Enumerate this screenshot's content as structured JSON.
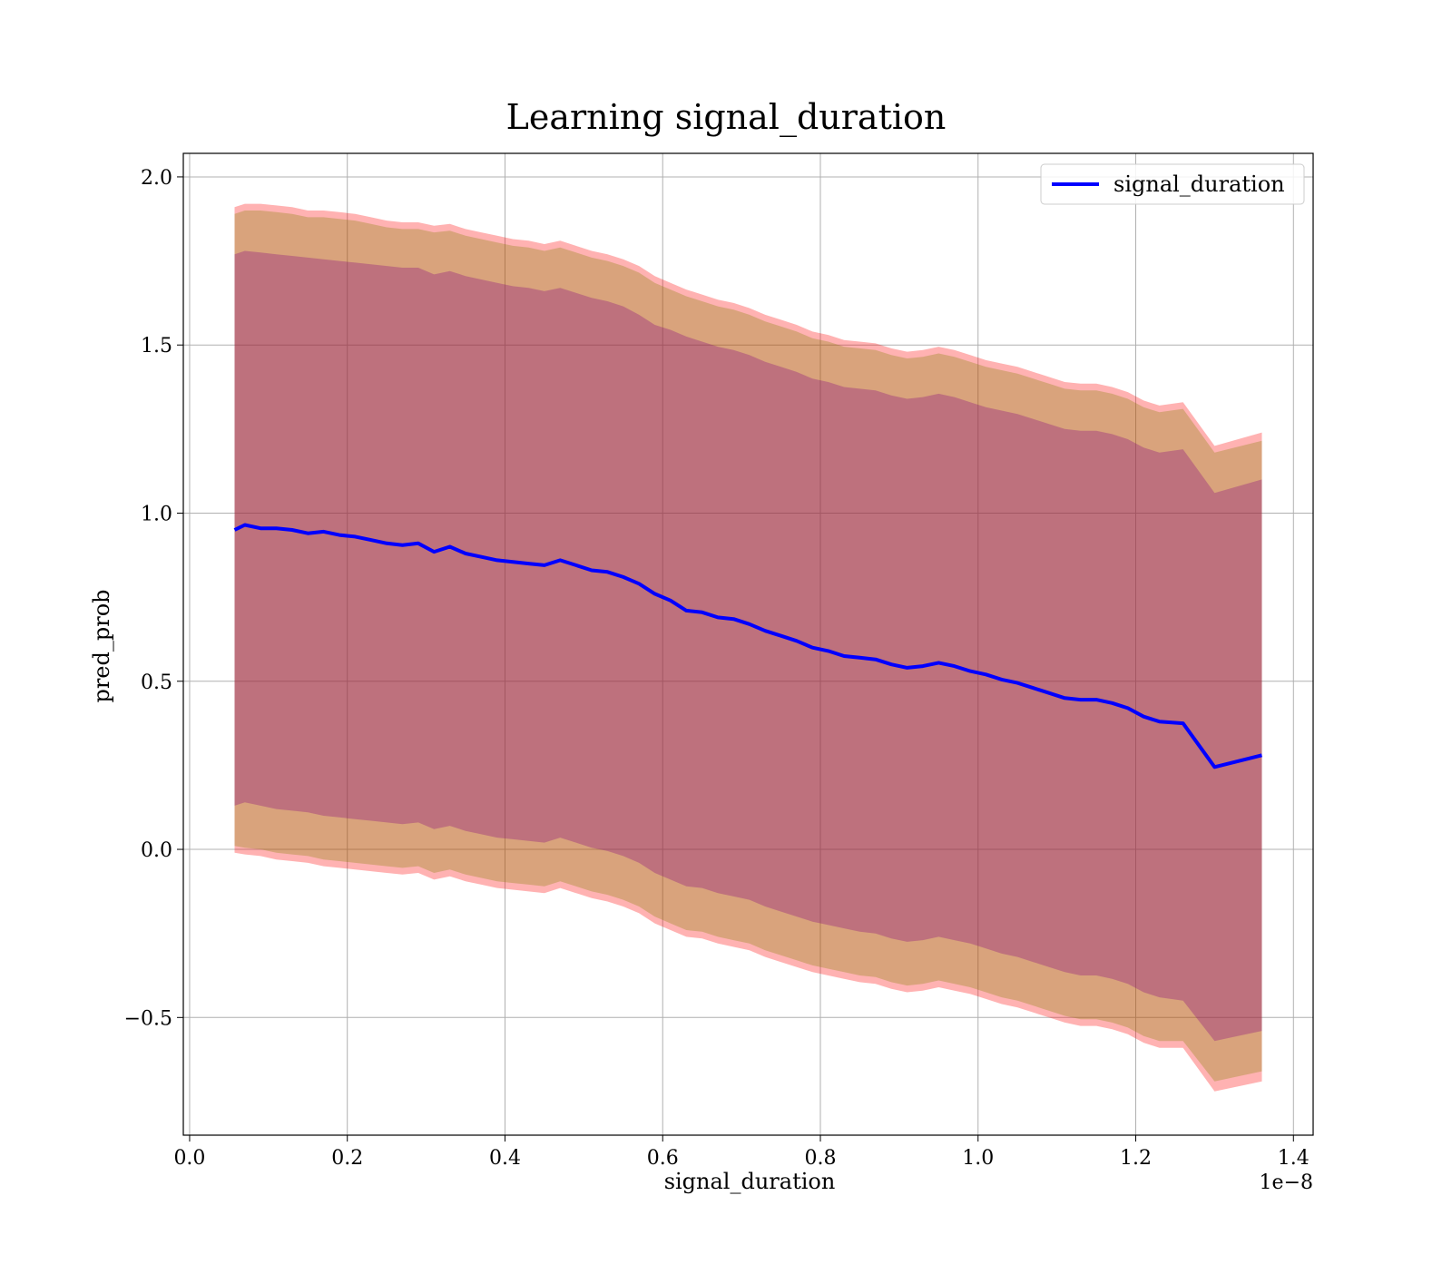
{
  "chart_data": {
    "type": "area",
    "title": "Learning signal_duration",
    "xlabel": "signal_duration",
    "ylabel": "pred_prob",
    "x_offset_label": "1e−8",
    "xlim": [
      -0.008,
      1.425
    ],
    "ylim": [
      -0.85,
      2.07
    ],
    "x_ticks": [
      0.0,
      0.2,
      0.4,
      0.6,
      0.8,
      1.0,
      1.2,
      1.4
    ],
    "x_tick_labels": [
      "0.0",
      "0.2",
      "0.4",
      "0.6",
      "0.8",
      "1.0",
      "1.2",
      "1.4"
    ],
    "y_ticks": [
      -0.5,
      0.0,
      0.5,
      1.0,
      1.5,
      2.0
    ],
    "y_tick_labels": [
      "−0.5",
      "0.0",
      "0.5",
      "1.0",
      "1.5",
      "2.0"
    ],
    "grid": true,
    "legend_position": "top-right",
    "series": [
      {
        "name": "signal_duration",
        "color": "#0000ff",
        "x": [
          0.057,
          0.07,
          0.09,
          0.11,
          0.13,
          0.15,
          0.17,
          0.19,
          0.21,
          0.23,
          0.25,
          0.27,
          0.29,
          0.31,
          0.33,
          0.35,
          0.37,
          0.39,
          0.41,
          0.43,
          0.45,
          0.47,
          0.49,
          0.51,
          0.53,
          0.55,
          0.57,
          0.59,
          0.61,
          0.63,
          0.65,
          0.67,
          0.69,
          0.71,
          0.73,
          0.75,
          0.77,
          0.79,
          0.81,
          0.83,
          0.85,
          0.87,
          0.89,
          0.91,
          0.93,
          0.95,
          0.97,
          0.99,
          1.01,
          1.03,
          1.05,
          1.07,
          1.09,
          1.11,
          1.13,
          1.15,
          1.17,
          1.19,
          1.21,
          1.23,
          1.26,
          1.3,
          1.36
        ],
        "values": [
          0.95,
          0.965,
          0.955,
          0.955,
          0.95,
          0.94,
          0.945,
          0.935,
          0.93,
          0.92,
          0.91,
          0.905,
          0.91,
          0.885,
          0.9,
          0.88,
          0.87,
          0.86,
          0.855,
          0.85,
          0.845,
          0.86,
          0.845,
          0.83,
          0.825,
          0.81,
          0.79,
          0.76,
          0.74,
          0.71,
          0.705,
          0.69,
          0.685,
          0.67,
          0.65,
          0.635,
          0.62,
          0.6,
          0.59,
          0.575,
          0.57,
          0.565,
          0.55,
          0.54,
          0.545,
          0.555,
          0.545,
          0.53,
          0.52,
          0.505,
          0.495,
          0.48,
          0.465,
          0.45,
          0.445,
          0.445,
          0.435,
          0.42,
          0.395,
          0.38,
          0.375,
          0.245,
          0.28
        ]
      }
    ],
    "bands": [
      {
        "color": "#ff0000",
        "opacity": 0.3,
        "lower": [
          -0.01,
          -0.015,
          -0.02,
          -0.03,
          -0.035,
          -0.04,
          -0.05,
          -0.055,
          -0.06,
          -0.065,
          -0.07,
          -0.075,
          -0.07,
          -0.09,
          -0.08,
          -0.095,
          -0.105,
          -0.115,
          -0.12,
          -0.125,
          -0.13,
          -0.115,
          -0.13,
          -0.145,
          -0.155,
          -0.17,
          -0.19,
          -0.22,
          -0.24,
          -0.26,
          -0.265,
          -0.28,
          -0.29,
          -0.3,
          -0.32,
          -0.335,
          -0.35,
          -0.365,
          -0.375,
          -0.385,
          -0.395,
          -0.4,
          -0.415,
          -0.425,
          -0.42,
          -0.41,
          -0.42,
          -0.43,
          -0.445,
          -0.46,
          -0.47,
          -0.485,
          -0.5,
          -0.515,
          -0.525,
          -0.525,
          -0.535,
          -0.55,
          -0.575,
          -0.59,
          -0.59,
          -0.72,
          -0.69
        ],
        "upper": [
          1.91,
          1.92,
          1.92,
          1.915,
          1.91,
          1.9,
          1.9,
          1.895,
          1.89,
          1.88,
          1.87,
          1.865,
          1.865,
          1.855,
          1.86,
          1.845,
          1.835,
          1.825,
          1.815,
          1.81,
          1.8,
          1.81,
          1.795,
          1.78,
          1.77,
          1.755,
          1.735,
          1.705,
          1.685,
          1.665,
          1.65,
          1.635,
          1.625,
          1.61,
          1.59,
          1.575,
          1.56,
          1.54,
          1.53,
          1.515,
          1.51,
          1.505,
          1.49,
          1.48,
          1.485,
          1.495,
          1.485,
          1.47,
          1.455,
          1.445,
          1.435,
          1.42,
          1.405,
          1.39,
          1.385,
          1.385,
          1.375,
          1.36,
          1.335,
          1.32,
          1.33,
          1.2,
          1.24
        ]
      },
      {
        "color": "#808000",
        "opacity": 0.3,
        "lower": [
          0.01,
          0.005,
          0.0,
          -0.01,
          -0.015,
          -0.02,
          -0.03,
          -0.035,
          -0.04,
          -0.045,
          -0.05,
          -0.055,
          -0.05,
          -0.07,
          -0.06,
          -0.075,
          -0.085,
          -0.095,
          -0.1,
          -0.105,
          -0.11,
          -0.095,
          -0.11,
          -0.125,
          -0.135,
          -0.15,
          -0.17,
          -0.2,
          -0.22,
          -0.24,
          -0.245,
          -0.26,
          -0.27,
          -0.28,
          -0.3,
          -0.315,
          -0.33,
          -0.345,
          -0.355,
          -0.365,
          -0.375,
          -0.38,
          -0.395,
          -0.405,
          -0.4,
          -0.39,
          -0.4,
          -0.41,
          -0.425,
          -0.44,
          -0.45,
          -0.465,
          -0.48,
          -0.495,
          -0.505,
          -0.505,
          -0.515,
          -0.53,
          -0.555,
          -0.57,
          -0.57,
          -0.69,
          -0.66
        ],
        "upper": [
          1.89,
          1.9,
          1.9,
          1.895,
          1.89,
          1.88,
          1.88,
          1.875,
          1.87,
          1.86,
          1.85,
          1.845,
          1.845,
          1.835,
          1.84,
          1.825,
          1.815,
          1.805,
          1.795,
          1.79,
          1.78,
          1.79,
          1.775,
          1.76,
          1.75,
          1.735,
          1.715,
          1.685,
          1.665,
          1.645,
          1.63,
          1.615,
          1.605,
          1.59,
          1.57,
          1.555,
          1.54,
          1.52,
          1.51,
          1.495,
          1.49,
          1.485,
          1.47,
          1.46,
          1.465,
          1.475,
          1.465,
          1.45,
          1.435,
          1.425,
          1.415,
          1.4,
          1.385,
          1.37,
          1.365,
          1.365,
          1.355,
          1.34,
          1.315,
          1.3,
          1.31,
          1.18,
          1.215
        ]
      },
      {
        "color": "#800080",
        "opacity": 0.3,
        "lower": [
          0.13,
          0.14,
          0.13,
          0.12,
          0.115,
          0.11,
          0.1,
          0.095,
          0.09,
          0.085,
          0.08,
          0.075,
          0.08,
          0.06,
          0.07,
          0.055,
          0.045,
          0.035,
          0.03,
          0.025,
          0.02,
          0.035,
          0.02,
          0.005,
          -0.005,
          -0.02,
          -0.04,
          -0.07,
          -0.09,
          -0.11,
          -0.115,
          -0.13,
          -0.14,
          -0.15,
          -0.17,
          -0.185,
          -0.2,
          -0.215,
          -0.225,
          -0.235,
          -0.245,
          -0.25,
          -0.265,
          -0.275,
          -0.27,
          -0.26,
          -0.27,
          -0.28,
          -0.295,
          -0.31,
          -0.32,
          -0.335,
          -0.35,
          -0.365,
          -0.375,
          -0.375,
          -0.385,
          -0.4,
          -0.425,
          -0.44,
          -0.45,
          -0.57,
          -0.54
        ],
        "upper": [
          1.77,
          1.78,
          1.775,
          1.77,
          1.765,
          1.76,
          1.755,
          1.75,
          1.745,
          1.74,
          1.735,
          1.73,
          1.73,
          1.71,
          1.72,
          1.705,
          1.695,
          1.685,
          1.675,
          1.67,
          1.66,
          1.67,
          1.655,
          1.64,
          1.63,
          1.615,
          1.59,
          1.56,
          1.545,
          1.525,
          1.51,
          1.495,
          1.485,
          1.47,
          1.45,
          1.435,
          1.42,
          1.4,
          1.39,
          1.375,
          1.37,
          1.365,
          1.35,
          1.34,
          1.345,
          1.355,
          1.345,
          1.33,
          1.315,
          1.305,
          1.295,
          1.28,
          1.265,
          1.25,
          1.245,
          1.245,
          1.235,
          1.22,
          1.195,
          1.18,
          1.19,
          1.06,
          1.1
        ]
      }
    ]
  }
}
